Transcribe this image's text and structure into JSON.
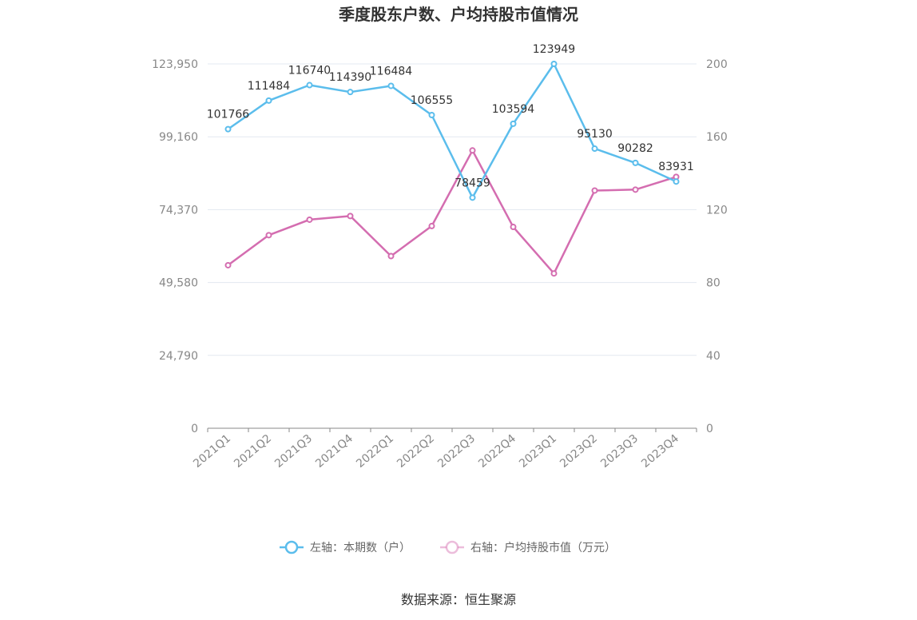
{
  "chart_data": {
    "type": "line",
    "title": "季度股东户数、户均持股市值情况",
    "categories": [
      "2021Q1",
      "2021Q2",
      "2021Q3",
      "2021Q4",
      "2022Q1",
      "2022Q2",
      "2022Q3",
      "2022Q4",
      "2023Q1",
      "2023Q2",
      "2023Q3",
      "2023Q4"
    ],
    "series": [
      {
        "name": "左轴：本期数（户）",
        "axis": "left",
        "color": "#5bbdec",
        "values": [
          101766,
          111484,
          116740,
          114390,
          116484,
          106555,
          78459,
          103594,
          123949,
          95130,
          90282,
          83931
        ],
        "data_labels": [
          "101766",
          "111484",
          "116740",
          "114390",
          "116484",
          "106555",
          "78459",
          "103594",
          "123949",
          "95130",
          "90282",
          "83931"
        ]
      },
      {
        "name": "右轴：户均持股市值（万元）",
        "axis": "right",
        "color": "#d46db0",
        "values": [
          89.5,
          106,
          114.5,
          116.5,
          94.5,
          111,
          152.5,
          110.5,
          85,
          130.5,
          131,
          138
        ]
      }
    ],
    "left_axis": {
      "min": 0,
      "max": 123950,
      "ticks": [
        0,
        24790,
        49580,
        74370,
        99160,
        123950
      ],
      "tick_labels": [
        "0",
        "24,790",
        "49,580",
        "74,370",
        "99,160",
        "123,950"
      ]
    },
    "right_axis": {
      "min": 0,
      "max": 200,
      "ticks": [
        0,
        40,
        80,
        120,
        160,
        200
      ],
      "tick_labels": [
        "0",
        "40",
        "80",
        "120",
        "160",
        "200"
      ]
    },
    "grid": true,
    "legend_position": "bottom"
  },
  "source_text": "数据来源：恒生聚源"
}
